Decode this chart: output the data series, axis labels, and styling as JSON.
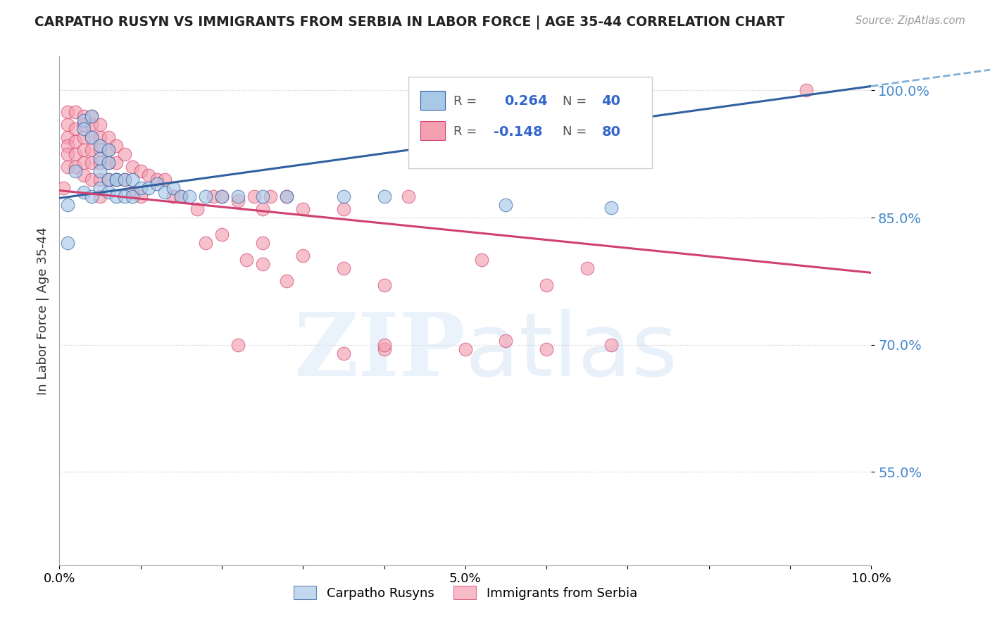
{
  "title": "CARPATHO RUSYN VS IMMIGRANTS FROM SERBIA IN LABOR FORCE | AGE 35-44 CORRELATION CHART",
  "source": "Source: ZipAtlas.com",
  "ylabel": "In Labor Force | Age 35-44",
  "xlim": [
    0.0,
    0.1
  ],
  "ylim": [
    0.44,
    1.04
  ],
  "yticks": [
    0.55,
    0.7,
    0.85,
    1.0
  ],
  "ytick_labels": [
    "55.0%",
    "70.0%",
    "85.0%",
    "100.0%"
  ],
  "color_blue": "#a8c8e8",
  "color_pink": "#f4a0b0",
  "color_trendline_blue": "#3060a0",
  "color_trendline_pink": "#d04070",
  "color_dashed": "#80b0d8",
  "blue_scatter_x": [
    0.001,
    0.001,
    0.002,
    0.003,
    0.003,
    0.003,
    0.004,
    0.004,
    0.004,
    0.005,
    0.005,
    0.005,
    0.005,
    0.006,
    0.006,
    0.006,
    0.006,
    0.007,
    0.007,
    0.007,
    0.008,
    0.008,
    0.009,
    0.009,
    0.01,
    0.011,
    0.012,
    0.013,
    0.014,
    0.015,
    0.016,
    0.018,
    0.02,
    0.022,
    0.025,
    0.028,
    0.035,
    0.04,
    0.055,
    0.068
  ],
  "blue_scatter_y": [
    0.865,
    0.82,
    0.905,
    0.965,
    0.955,
    0.88,
    0.97,
    0.945,
    0.875,
    0.935,
    0.92,
    0.905,
    0.885,
    0.93,
    0.915,
    0.895,
    0.88,
    0.895,
    0.895,
    0.875,
    0.895,
    0.875,
    0.895,
    0.875,
    0.885,
    0.885,
    0.89,
    0.88,
    0.885,
    0.875,
    0.875,
    0.875,
    0.875,
    0.875,
    0.875,
    0.875,
    0.875,
    0.875,
    0.865,
    0.862
  ],
  "pink_scatter_x": [
    0.0005,
    0.001,
    0.001,
    0.001,
    0.001,
    0.001,
    0.001,
    0.002,
    0.002,
    0.002,
    0.002,
    0.002,
    0.003,
    0.003,
    0.003,
    0.003,
    0.003,
    0.003,
    0.004,
    0.004,
    0.004,
    0.004,
    0.004,
    0.004,
    0.005,
    0.005,
    0.005,
    0.005,
    0.005,
    0.005,
    0.006,
    0.006,
    0.006,
    0.006,
    0.007,
    0.007,
    0.007,
    0.008,
    0.008,
    0.009,
    0.009,
    0.01,
    0.01,
    0.011,
    0.012,
    0.013,
    0.014,
    0.015,
    0.017,
    0.019,
    0.02,
    0.022,
    0.024,
    0.025,
    0.026,
    0.028,
    0.03,
    0.035,
    0.04,
    0.043,
    0.02,
    0.025,
    0.03,
    0.035,
    0.04,
    0.018,
    0.025,
    0.023,
    0.028,
    0.052,
    0.065,
    0.06,
    0.022,
    0.035,
    0.04,
    0.05,
    0.055,
    0.06,
    0.068,
    0.092
  ],
  "pink_scatter_y": [
    0.885,
    0.975,
    0.96,
    0.945,
    0.935,
    0.925,
    0.91,
    0.975,
    0.955,
    0.94,
    0.925,
    0.91,
    0.97,
    0.96,
    0.945,
    0.93,
    0.915,
    0.9,
    0.97,
    0.96,
    0.945,
    0.93,
    0.915,
    0.895,
    0.96,
    0.945,
    0.93,
    0.915,
    0.895,
    0.875,
    0.945,
    0.93,
    0.915,
    0.895,
    0.935,
    0.915,
    0.895,
    0.925,
    0.895,
    0.91,
    0.88,
    0.905,
    0.875,
    0.9,
    0.895,
    0.895,
    0.875,
    0.875,
    0.86,
    0.875,
    0.875,
    0.87,
    0.875,
    0.86,
    0.875,
    0.875,
    0.86,
    0.86,
    0.695,
    0.875,
    0.83,
    0.82,
    0.805,
    0.79,
    0.77,
    0.82,
    0.795,
    0.8,
    0.775,
    0.8,
    0.79,
    0.77,
    0.7,
    0.69,
    0.7,
    0.695,
    0.705,
    0.695,
    0.7,
    1.0
  ]
}
